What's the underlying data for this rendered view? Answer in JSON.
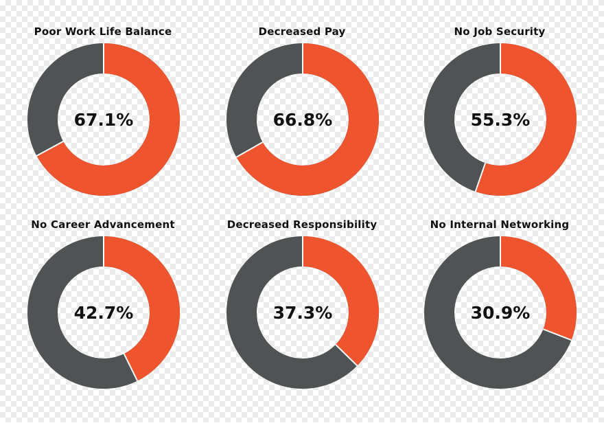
{
  "colors": {
    "accent": "#EE552F",
    "remainder": "#4F5354",
    "text": "#111111"
  },
  "chart_data": {
    "type": "donut",
    "items": [
      {
        "title": "Poor Work Life Balance",
        "value": 67.1,
        "label": "67.1%"
      },
      {
        "title": "Decreased Pay",
        "value": 66.8,
        "label": "66.8%"
      },
      {
        "title": "No Job Security",
        "value": 55.3,
        "label": "55.3%"
      },
      {
        "title": "No Career Advancement",
        "value": 42.7,
        "label": "42.7%"
      },
      {
        "title": "Decreased Responsibility",
        "value": 37.3,
        "label": "37.3%"
      },
      {
        "title": "No Internal Networking",
        "value": 30.9,
        "label": "30.9%"
      }
    ]
  }
}
